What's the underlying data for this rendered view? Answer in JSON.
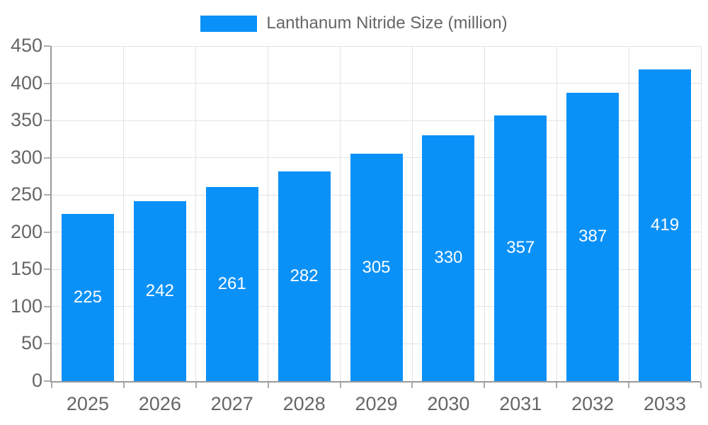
{
  "chart_data": {
    "type": "bar",
    "title": "Lanthanum Nitride Size (million)",
    "legend": {
      "label": "Lanthanum Nitride Size (million)",
      "position": "top"
    },
    "categories": [
      "2025",
      "2026",
      "2027",
      "2028",
      "2029",
      "2030",
      "2031",
      "2032",
      "2033"
    ],
    "series": [
      {
        "name": "Lanthanum Nitride Size (million)",
        "values": [
          225,
          242,
          261,
          282,
          305,
          330,
          357,
          387,
          419
        ]
      }
    ],
    "xlabel": "",
    "ylabel": "",
    "ylim": [
      0,
      450
    ],
    "yticks": [
      0,
      50,
      100,
      150,
      200,
      250,
      300,
      350,
      400,
      450
    ],
    "grid": {
      "horizontal": true,
      "vertical": true
    },
    "value_labels": "centered-inside-bars",
    "colors": {
      "bar": "#0A91F8",
      "value_label": "#ffffff",
      "axis_line": "#999999",
      "grid_line": "#e3e3e3",
      "tick_mark": "#adadad",
      "tick_text": "#666666",
      "legend_text": "#666666",
      "background": "#ffffff"
    }
  }
}
